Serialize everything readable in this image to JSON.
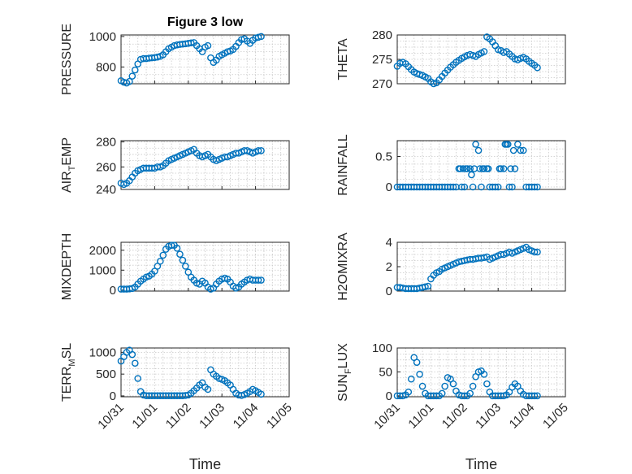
{
  "figure": {
    "marker_color": "#0072bd",
    "x_range": [
      "2021-10-31",
      "2021-11-05"
    ],
    "xticks": [
      "10/31",
      "11/01",
      "11/02",
      "11/03",
      "11/04",
      "11/05"
    ],
    "xlabel": "Time"
  },
  "chart_data": [
    {
      "type": "scatter",
      "title": "Figure 3 low",
      "ylabel": "PRESSURE",
      "ylabel_sub": "",
      "ylim": [
        690,
        1010
      ],
      "yticks": [
        800,
        1000
      ],
      "grid": true,
      "x": [
        "2021-10-31T00",
        "2021-10-31T02",
        "2021-10-31T04",
        "2021-10-31T06",
        "2021-10-31T08",
        "2021-10-31T10",
        "2021-10-31T12",
        "2021-10-31T14",
        "2021-10-31T16",
        "2021-10-31T18",
        "2021-10-31T20",
        "2021-10-31T22",
        "2021-11-01T00",
        "2021-11-01T02",
        "2021-11-01T04",
        "2021-11-01T06",
        "2021-11-01T08",
        "2021-11-01T10",
        "2021-11-01T12",
        "2021-11-01T14",
        "2021-11-01T16",
        "2021-11-01T18",
        "2021-11-01T20",
        "2021-11-01T22",
        "2021-11-02T00",
        "2021-11-02T02",
        "2021-11-02T04",
        "2021-11-02T06",
        "2021-11-02T08",
        "2021-11-02T10",
        "2021-11-02T12",
        "2021-11-02T14",
        "2021-11-02T16",
        "2021-11-02T18",
        "2021-11-02T20",
        "2021-11-02T22",
        "2021-11-03T00",
        "2021-11-03T02",
        "2021-11-03T04",
        "2021-11-03T06",
        "2021-11-03T08",
        "2021-11-03T10",
        "2021-11-03T12",
        "2021-11-03T14",
        "2021-11-03T16",
        "2021-11-03T18",
        "2021-11-03T20",
        "2021-11-03T22",
        "2021-11-04T00",
        "2021-11-04T02",
        "2021-11-04T04"
      ],
      "y": [
        710,
        700,
        695,
        705,
        740,
        780,
        820,
        850,
        855,
        855,
        858,
        860,
        862,
        865,
        870,
        880,
        900,
        920,
        930,
        940,
        945,
        948,
        950,
        952,
        955,
        958,
        960,
        940,
        920,
        900,
        930,
        940,
        860,
        830,
        845,
        870,
        880,
        890,
        900,
        905,
        915,
        935,
        960,
        980,
        985,
        970,
        955,
        975,
        990,
        995,
        1000
      ]
    },
    {
      "type": "scatter",
      "title": "",
      "ylabel": "THETA",
      "ylabel_sub": "",
      "ylim": [
        270,
        280
      ],
      "yticks": [
        270,
        275,
        280
      ],
      "grid": true,
      "x": [
        "2021-10-31T00",
        "2021-10-31T02",
        "2021-10-31T04",
        "2021-10-31T06",
        "2021-10-31T08",
        "2021-10-31T10",
        "2021-10-31T12",
        "2021-10-31T14",
        "2021-10-31T16",
        "2021-10-31T18",
        "2021-10-31T20",
        "2021-10-31T22",
        "2021-11-01T00",
        "2021-11-01T02",
        "2021-11-01T04",
        "2021-11-01T06",
        "2021-11-01T08",
        "2021-11-01T10",
        "2021-11-01T12",
        "2021-11-01T14",
        "2021-11-01T16",
        "2021-11-01T18",
        "2021-11-01T20",
        "2021-11-01T22",
        "2021-11-02T00",
        "2021-11-02T02",
        "2021-11-02T04",
        "2021-11-02T06",
        "2021-11-02T08",
        "2021-11-02T10",
        "2021-11-02T12",
        "2021-11-02T14",
        "2021-11-02T16",
        "2021-11-02T18",
        "2021-11-02T20",
        "2021-11-02T22",
        "2021-11-03T00",
        "2021-11-03T02",
        "2021-11-03T04",
        "2021-11-03T06",
        "2021-11-03T08",
        "2021-11-03T10",
        "2021-11-03T12",
        "2021-11-03T14",
        "2021-11-03T16",
        "2021-11-03T18",
        "2021-11-03T20",
        "2021-11-03T22",
        "2021-11-04T00",
        "2021-11-04T02",
        "2021-11-04T04"
      ],
      "y": [
        273.6,
        274.2,
        274.4,
        274.1,
        273.5,
        272.9,
        272.4,
        272.1,
        271.9,
        271.7,
        271.4,
        271.1,
        270.4,
        270.0,
        270.2,
        270.8,
        271.5,
        272.2,
        272.8,
        273.4,
        273.9,
        274.4,
        274.8,
        275.2,
        275.5,
        275.8,
        276.0,
        275.8,
        275.6,
        276.0,
        276.3,
        276.6,
        279.6,
        279.2,
        278.6,
        277.8,
        277.0,
        276.8,
        276.4,
        276.6,
        276.1,
        275.6,
        275.1,
        274.9,
        275.2,
        275.4,
        275.1,
        274.6,
        274.2,
        273.8,
        273.3
      ]
    },
    {
      "type": "scatter",
      "title": "",
      "ylabel": "AIR",
      "ylabel_sub": "T",
      "ylabel_rest": "EMP",
      "ylim": [
        242,
        281
      ],
      "yticks": [
        240,
        260,
        280
      ],
      "grid": true,
      "x": [
        "2021-10-31T00",
        "2021-10-31T02",
        "2021-10-31T04",
        "2021-10-31T06",
        "2021-10-31T08",
        "2021-10-31T10",
        "2021-10-31T12",
        "2021-10-31T14",
        "2021-10-31T16",
        "2021-10-31T18",
        "2021-10-31T20",
        "2021-10-31T22",
        "2021-11-01T00",
        "2021-11-01T02",
        "2021-11-01T04",
        "2021-11-01T06",
        "2021-11-01T08",
        "2021-11-01T10",
        "2021-11-01T12",
        "2021-11-01T14",
        "2021-11-01T16",
        "2021-11-01T18",
        "2021-11-01T20",
        "2021-11-01T22",
        "2021-11-02T00",
        "2021-11-02T02",
        "2021-11-02T04",
        "2021-11-02T06",
        "2021-11-02T08",
        "2021-11-02T10",
        "2021-11-02T12",
        "2021-11-02T14",
        "2021-11-02T16",
        "2021-11-02T18",
        "2021-11-02T20",
        "2021-11-02T22",
        "2021-11-03T00",
        "2021-11-03T02",
        "2021-11-03T04",
        "2021-11-03T06",
        "2021-11-03T08",
        "2021-11-03T10",
        "2021-11-03T12",
        "2021-11-03T14",
        "2021-11-03T16",
        "2021-11-03T18",
        "2021-11-03T20",
        "2021-11-03T22",
        "2021-11-04T00",
        "2021-11-04T02",
        "2021-11-04T04"
      ],
      "y": [
        247,
        246,
        247,
        249,
        252,
        255,
        257,
        258,
        259,
        259,
        259,
        259,
        259,
        260,
        260,
        261,
        263,
        265,
        266,
        267,
        268,
        269,
        270,
        271,
        272,
        273,
        274,
        271,
        269,
        268,
        269,
        270,
        268,
        266,
        265,
        266,
        267,
        268,
        268,
        269,
        270,
        271,
        271,
        272,
        273,
        273,
        272,
        271,
        272,
        273,
        273
      ]
    },
    {
      "type": "scatter",
      "title": "",
      "ylabel": "RAINFALL",
      "ylabel_sub": "",
      "ylim": [
        -0.04,
        0.76
      ],
      "yticks": [
        0,
        0.5
      ],
      "grid": true,
      "x": [
        "2021-10-31T00",
        "2021-10-31T02",
        "2021-10-31T04",
        "2021-10-31T06",
        "2021-10-31T08",
        "2021-10-31T10",
        "2021-10-31T12",
        "2021-10-31T14",
        "2021-10-31T16",
        "2021-10-31T18",
        "2021-10-31T20",
        "2021-10-31T22",
        "2021-11-01T00",
        "2021-11-01T02",
        "2021-11-01T04",
        "2021-11-01T06",
        "2021-11-01T08",
        "2021-11-01T10",
        "2021-11-01T12",
        "2021-11-01T14",
        "2021-11-01T16",
        "2021-11-01T18",
        "2021-11-01T20",
        "2021-11-01T22",
        "2021-11-02T00",
        "2021-11-02T02",
        "2021-11-02T04",
        "2021-11-02T06",
        "2021-11-02T08",
        "2021-11-02T10",
        "2021-11-02T12",
        "2021-11-02T14",
        "2021-11-02T16",
        "2021-11-02T18",
        "2021-11-02T20",
        "2021-11-02T22",
        "2021-11-03T00",
        "2021-11-03T02",
        "2021-11-03T04",
        "2021-11-03T06",
        "2021-11-03T08",
        "2021-11-03T10",
        "2021-11-03T12",
        "2021-11-03T14",
        "2021-11-03T16",
        "2021-11-03T18",
        "2021-11-03T20",
        "2021-11-03T22",
        "2021-11-04T00",
        "2021-11-04T02",
        "2021-11-04T04",
        "2021-11-01T21",
        "2021-11-01T23",
        "2021-11-02T01",
        "2021-11-02T05",
        "2021-11-02T07",
        "2021-11-02T11",
        "2021-11-02T13",
        "2021-11-02T17",
        "2021-11-03T01",
        "2021-11-03T05",
        "2021-11-03T07",
        "2021-11-03T09",
        "2021-11-03T11"
      ],
      "y": [
        0,
        0,
        0,
        0,
        0,
        0,
        0,
        0,
        0,
        0,
        0,
        0,
        0,
        0,
        0,
        0,
        0,
        0,
        0,
        0,
        0,
        0,
        0.3,
        0,
        0,
        0.3,
        0.3,
        0,
        0.7,
        0.6,
        0,
        0.3,
        0.3,
        0,
        0,
        0,
        0,
        0.3,
        0.3,
        0.7,
        0,
        0,
        0.3,
        0.7,
        0.6,
        0.6,
        0,
        0,
        0,
        0,
        0,
        0.3,
        0.3,
        0.3,
        0.2,
        0.3,
        0.3,
        0.3,
        0.3,
        0.3,
        0.7,
        0.7,
        0.3,
        0.6
      ]
    },
    {
      "type": "scatter",
      "title": "",
      "ylabel": "MIXDEPTH",
      "ylabel_sub": "",
      "ylim": [
        -50,
        2400
      ],
      "yticks": [
        0,
        1000,
        2000
      ],
      "grid": true,
      "x": [
        "2021-10-31T00",
        "2021-10-31T02",
        "2021-10-31T04",
        "2021-10-31T06",
        "2021-10-31T08",
        "2021-10-31T10",
        "2021-10-31T12",
        "2021-10-31T14",
        "2021-10-31T16",
        "2021-10-31T18",
        "2021-10-31T20",
        "2021-10-31T22",
        "2021-11-01T00",
        "2021-11-01T02",
        "2021-11-01T04",
        "2021-11-01T06",
        "2021-11-01T08",
        "2021-11-01T10",
        "2021-11-01T12",
        "2021-11-01T14",
        "2021-11-01T16",
        "2021-11-01T18",
        "2021-11-01T20",
        "2021-11-01T22",
        "2021-11-02T00",
        "2021-11-02T02",
        "2021-11-02T04",
        "2021-11-02T06",
        "2021-11-02T08",
        "2021-11-02T10",
        "2021-11-02T12",
        "2021-11-02T14",
        "2021-11-02T16",
        "2021-11-02T18",
        "2021-11-02T20",
        "2021-11-02T22",
        "2021-11-03T00",
        "2021-11-03T02",
        "2021-11-03T04",
        "2021-11-03T06",
        "2021-11-03T08",
        "2021-11-03T10",
        "2021-11-03T12",
        "2021-11-03T14",
        "2021-11-03T16",
        "2021-11-03T18",
        "2021-11-03T20",
        "2021-11-03T22",
        "2021-11-04T00",
        "2021-11-04T02",
        "2021-11-04T04"
      ],
      "y": [
        50,
        50,
        50,
        60,
        80,
        150,
        300,
        450,
        550,
        650,
        700,
        800,
        950,
        1200,
        1450,
        1750,
        2050,
        2200,
        2250,
        2250,
        2100,
        1800,
        1500,
        1200,
        900,
        650,
        500,
        350,
        300,
        450,
        350,
        150,
        50,
        100,
        300,
        450,
        550,
        600,
        550,
        400,
        200,
        100,
        150,
        300,
        400,
        500,
        550,
        500,
        500,
        500,
        500
      ]
    },
    {
      "type": "scatter",
      "title": "",
      "ylabel": "H2OMIXRA",
      "ylabel_sub": "",
      "ylim": [
        0,
        4
      ],
      "yticks": [
        0,
        2,
        4
      ],
      "grid": true,
      "x": [
        "2021-10-31T00",
        "2021-10-31T02",
        "2021-10-31T04",
        "2021-10-31T06",
        "2021-10-31T08",
        "2021-10-31T10",
        "2021-10-31T12",
        "2021-10-31T14",
        "2021-10-31T16",
        "2021-10-31T18",
        "2021-10-31T20",
        "2021-10-31T22",
        "2021-11-01T00",
        "2021-11-01T02",
        "2021-11-01T04",
        "2021-11-01T06",
        "2021-11-01T08",
        "2021-11-01T10",
        "2021-11-01T12",
        "2021-11-01T14",
        "2021-11-01T16",
        "2021-11-01T18",
        "2021-11-01T20",
        "2021-11-01T22",
        "2021-11-02T00",
        "2021-11-02T02",
        "2021-11-02T04",
        "2021-11-02T06",
        "2021-11-02T08",
        "2021-11-02T10",
        "2021-11-02T12",
        "2021-11-02T14",
        "2021-11-02T16",
        "2021-11-02T18",
        "2021-11-02T20",
        "2021-11-02T22",
        "2021-11-03T00",
        "2021-11-03T02",
        "2021-11-03T04",
        "2021-11-03T06",
        "2021-11-03T08",
        "2021-11-03T10",
        "2021-11-03T12",
        "2021-11-03T14",
        "2021-11-03T16",
        "2021-11-03T18",
        "2021-11-03T20",
        "2021-11-03T22",
        "2021-11-04T00",
        "2021-11-04T02",
        "2021-11-04T04"
      ],
      "y": [
        0.3,
        0.3,
        0.25,
        0.2,
        0.2,
        0.2,
        0.2,
        0.2,
        0.25,
        0.3,
        0.35,
        0.4,
        1.0,
        1.3,
        1.5,
        1.6,
        1.8,
        1.9,
        2.0,
        2.1,
        2.2,
        2.3,
        2.4,
        2.45,
        2.5,
        2.55,
        2.6,
        2.6,
        2.65,
        2.7,
        2.7,
        2.75,
        2.8,
        2.6,
        2.7,
        2.8,
        2.9,
        3.0,
        3.0,
        3.1,
        3.2,
        3.1,
        3.2,
        3.3,
        3.4,
        3.5,
        3.6,
        3.4,
        3.3,
        3.2,
        3.2
      ]
    },
    {
      "type": "scatter",
      "title": "",
      "ylabel": "TERR",
      "ylabel_sub": "M",
      "ylabel_rest": "SL",
      "ylim": [
        -20,
        1100
      ],
      "yticks": [
        0,
        500,
        1000
      ],
      "grid": true,
      "x": [
        "2021-10-31T00",
        "2021-10-31T02",
        "2021-10-31T04",
        "2021-10-31T06",
        "2021-10-31T08",
        "2021-10-31T10",
        "2021-10-31T12",
        "2021-10-31T14",
        "2021-10-31T16",
        "2021-10-31T18",
        "2021-10-31T20",
        "2021-10-31T22",
        "2021-11-01T00",
        "2021-11-01T02",
        "2021-11-01T04",
        "2021-11-01T06",
        "2021-11-01T08",
        "2021-11-01T10",
        "2021-11-01T12",
        "2021-11-01T14",
        "2021-11-01T16",
        "2021-11-01T18",
        "2021-11-01T20",
        "2021-11-01T22",
        "2021-11-02T00",
        "2021-11-02T02",
        "2021-11-02T04",
        "2021-11-02T06",
        "2021-11-02T08",
        "2021-11-02T10",
        "2021-11-02T12",
        "2021-11-02T14",
        "2021-11-02T16",
        "2021-11-02T18",
        "2021-11-02T20",
        "2021-11-02T22",
        "2021-11-03T00",
        "2021-11-03T02",
        "2021-11-03T04",
        "2021-11-03T06",
        "2021-11-03T08",
        "2021-11-03T10",
        "2021-11-03T12",
        "2021-11-03T14",
        "2021-11-03T16",
        "2021-11-03T18",
        "2021-11-03T20",
        "2021-11-03T22",
        "2021-11-04T00",
        "2021-11-04T02",
        "2021-11-04T04"
      ],
      "y": [
        800,
        900,
        1000,
        1050,
        950,
        750,
        400,
        100,
        20,
        5,
        5,
        5,
        5,
        5,
        5,
        5,
        5,
        5,
        5,
        5,
        5,
        5,
        5,
        10,
        20,
        60,
        120,
        180,
        250,
        300,
        200,
        150,
        600,
        500,
        450,
        400,
        380,
        350,
        300,
        250,
        150,
        60,
        20,
        10,
        30,
        60,
        100,
        150,
        120,
        80,
        40
      ]
    },
    {
      "type": "scatter",
      "title": "",
      "ylabel": "SUN",
      "ylabel_sub": "F",
      "ylabel_rest": "LUX",
      "ylim": [
        -2,
        100
      ],
      "yticks": [
        0,
        50,
        100
      ],
      "grid": true,
      "x": [
        "2021-10-31T00",
        "2021-10-31T02",
        "2021-10-31T04",
        "2021-10-31T06",
        "2021-10-31T08",
        "2021-10-31T10",
        "2021-10-31T12",
        "2021-10-31T14",
        "2021-10-31T16",
        "2021-10-31T18",
        "2021-10-31T20",
        "2021-10-31T22",
        "2021-11-01T00",
        "2021-11-01T02",
        "2021-11-01T04",
        "2021-11-01T06",
        "2021-11-01T08",
        "2021-11-01T10",
        "2021-11-01T12",
        "2021-11-01T14",
        "2021-11-01T16",
        "2021-11-01T18",
        "2021-11-01T20",
        "2021-11-01T22",
        "2021-11-02T00",
        "2021-11-02T02",
        "2021-11-02T04",
        "2021-11-02T06",
        "2021-11-02T08",
        "2021-11-02T10",
        "2021-11-02T12",
        "2021-11-02T14",
        "2021-11-02T16",
        "2021-11-02T18",
        "2021-11-02T20",
        "2021-11-02T22",
        "2021-11-03T00",
        "2021-11-03T02",
        "2021-11-03T04",
        "2021-11-03T06",
        "2021-11-03T08",
        "2021-11-03T10",
        "2021-11-03T12",
        "2021-11-03T14",
        "2021-11-03T16",
        "2021-11-03T18",
        "2021-11-03T20",
        "2021-11-03T22",
        "2021-11-04T00",
        "2021-11-04T02",
        "2021-11-04T04"
      ],
      "y": [
        0,
        0,
        0,
        2,
        8,
        35,
        80,
        70,
        45,
        20,
        5,
        0,
        0,
        0,
        0,
        0,
        5,
        20,
        38,
        35,
        25,
        10,
        2,
        0,
        0,
        0,
        5,
        20,
        40,
        50,
        52,
        45,
        25,
        8,
        0,
        0,
        0,
        0,
        0,
        2,
        8,
        18,
        25,
        20,
        10,
        3,
        0,
        0,
        0,
        0,
        0
      ]
    }
  ]
}
